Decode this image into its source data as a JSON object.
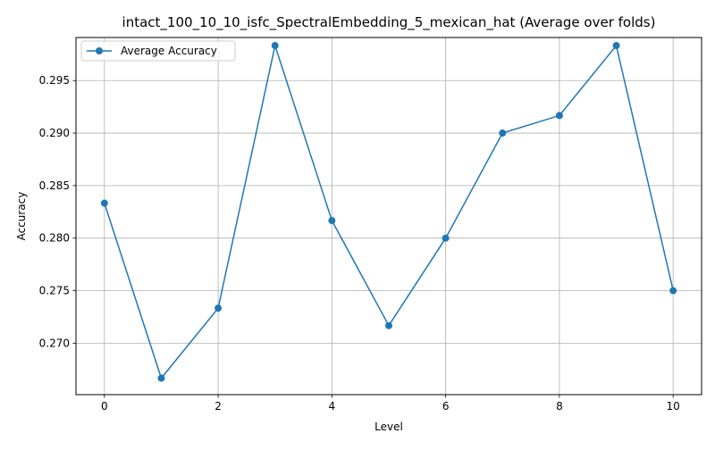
{
  "chart_data": {
    "type": "line",
    "title": "intact_100_10_10_isfc_SpectralEmbedding_5_mexican_hat (Average over folds)",
    "xlabel": "Level",
    "ylabel": "Accuracy",
    "x": [
      0,
      1,
      2,
      3,
      4,
      5,
      6,
      7,
      8,
      9,
      10
    ],
    "series": [
      {
        "name": "Average Accuracy",
        "color": "#1f77b4",
        "marker": "circle",
        "values": [
          0.28333,
          0.26667,
          0.27333,
          0.29833,
          0.28167,
          0.27167,
          0.28,
          0.29,
          0.29167,
          0.29833,
          0.275
        ]
      }
    ],
    "xlim": [
      -0.5,
      10.5
    ],
    "ylim": [
      0.2651,
      0.2991
    ],
    "xticks": [
      0,
      2,
      4,
      6,
      8,
      10
    ],
    "xtick_labels": [
      "0",
      "2",
      "4",
      "6",
      "8",
      "10"
    ],
    "yticks": [
      0.27,
      0.275,
      0.28,
      0.285,
      0.29,
      0.295
    ],
    "ytick_labels": [
      "0.270",
      "0.275",
      "0.280",
      "0.285",
      "0.290",
      "0.295"
    ],
    "grid": true,
    "legend_position": "upper-left"
  }
}
